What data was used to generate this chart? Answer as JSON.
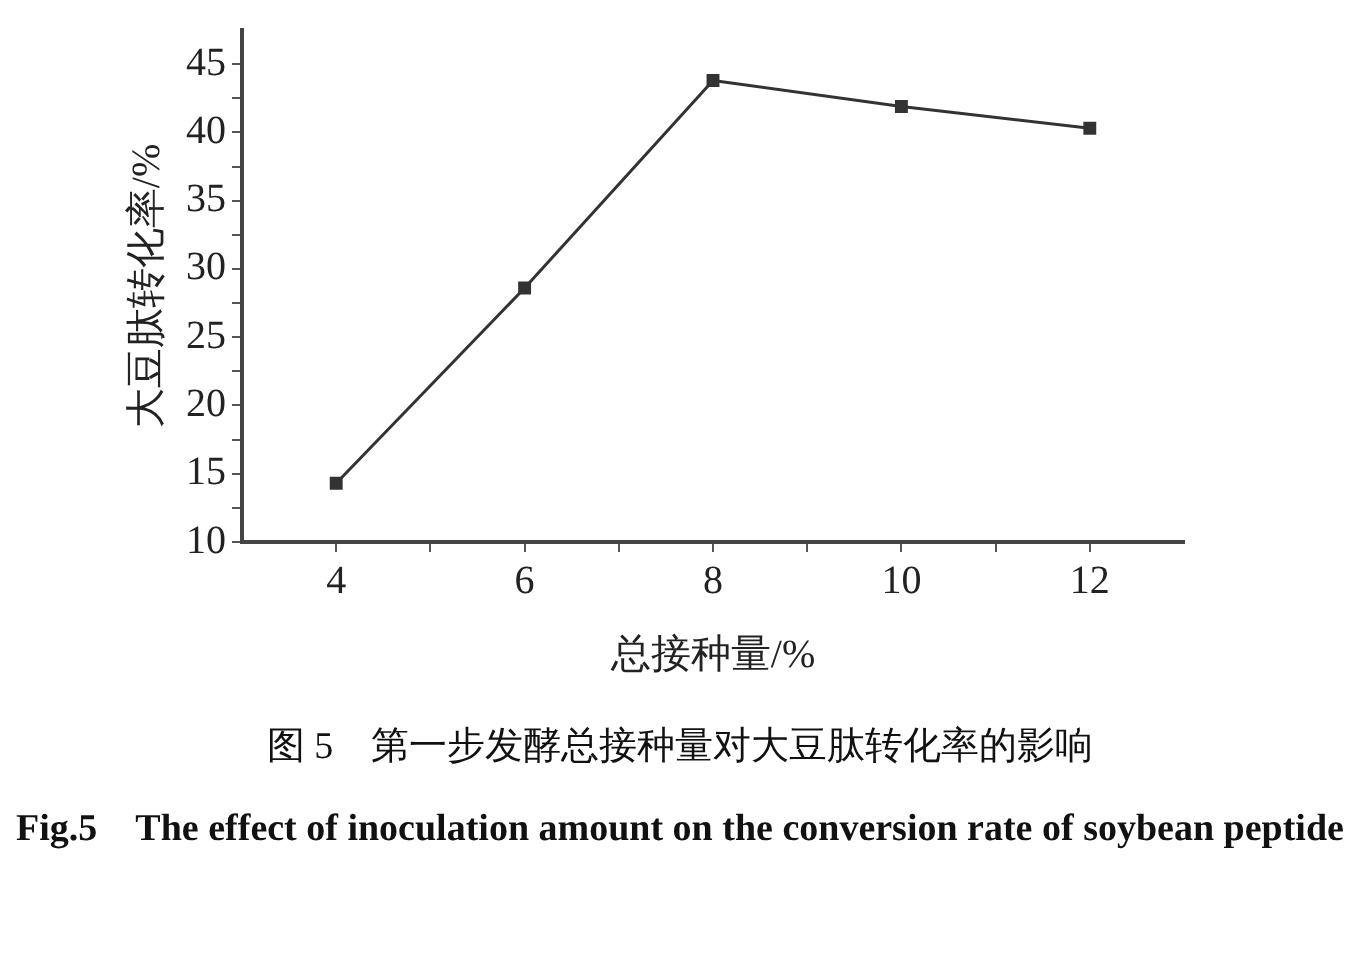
{
  "chart_data": {
    "type": "line",
    "xlabel": "总接种量/%",
    "ylabel": "大豆肽转化率/%",
    "x": [
      4,
      6,
      8,
      10,
      12
    ],
    "series": [
      {
        "color": "#333333",
        "values": [
          14.3,
          28.6,
          43.8,
          41.9,
          40.3
        ]
      }
    ],
    "xlim": [
      3,
      13
    ],
    "xticks": [
      4,
      {
        "value": 5,
        "label": null
      },
      6,
      {
        "value": 7,
        "label": null
      },
      8,
      {
        "value": 9,
        "label": null
      },
      10,
      {
        "value": 11,
        "label": null
      },
      12
    ],
    "ylim": [
      10,
      47.5
    ],
    "yticks": [
      10,
      {
        "value": 12.5,
        "label": null
      },
      15,
      {
        "value": 17.5,
        "label": null
      },
      20,
      {
        "value": 22.5,
        "label": null
      },
      25,
      {
        "value": 27.5,
        "label": null
      },
      30,
      {
        "value": 32.5,
        "label": null
      },
      35,
      {
        "value": 37.5,
        "label": null
      },
      40,
      {
        "value": 42.5,
        "label": null
      },
      45
    ],
    "marker": "square",
    "grid": false,
    "legend": false,
    "annotations": [
      "图 5　第一步发酵总接种量对大豆肽转化率的影响",
      "Fig.5　The effect of inoculation amount on the conversion rate of soybean peptide"
    ]
  }
}
